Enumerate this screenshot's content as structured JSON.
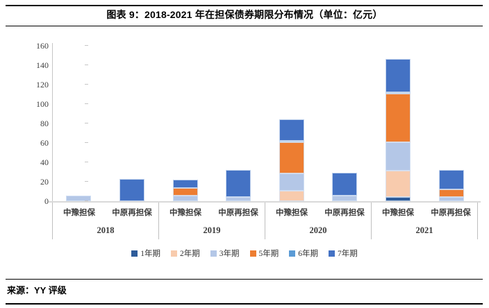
{
  "header": {
    "title": "图表 9：2018-2021 年在担保债券期限分布情况（单位：亿元）"
  },
  "chart_data": {
    "type": "bar",
    "stacked": true,
    "title": "图表 9：2018-2021 年在担保债券期限分布情况",
    "unit": "亿元",
    "groups": [
      "2018",
      "2019",
      "2020",
      "2021"
    ],
    "subcategories": [
      "中豫担保",
      "中原再担保"
    ],
    "series": [
      {
        "name": "1年期",
        "color": "#2E5C9A",
        "values": [
          0,
          0,
          0,
          0,
          0,
          0,
          4.5,
          0
        ]
      },
      {
        "name": "2年期",
        "color": "#F8CBAD",
        "values": [
          0,
          0,
          0,
          0,
          11,
          0,
          27,
          0
        ]
      },
      {
        "name": "3年期",
        "color": "#B4C7E7",
        "values": [
          6,
          0,
          6,
          4,
          17.5,
          6,
          29,
          4
        ]
      },
      {
        "name": "5年期",
        "color": "#ED7D31",
        "values": [
          0,
          0,
          7.5,
          0,
          32,
          0,
          50,
          8.5
        ]
      },
      {
        "name": "6年期",
        "color": "#5B9BD5",
        "values": [
          0,
          0,
          0,
          0,
          2,
          0,
          2,
          0
        ]
      },
      {
        "name": "7年期",
        "color": "#4472C4",
        "values": [
          0,
          23,
          9,
          28.5,
          22,
          23,
          34,
          19.5
        ]
      }
    ],
    "ylim": [
      0,
      160
    ],
    "ytick_interval": 20,
    "yticks": [
      "0",
      "20",
      "40",
      "60",
      "80",
      "100",
      "120",
      "140",
      "160"
    ],
    "legend_position": "bottom",
    "grid": false,
    "axis_color": "#C6C6C6"
  },
  "footer": {
    "source": "来源：YY 评级"
  }
}
